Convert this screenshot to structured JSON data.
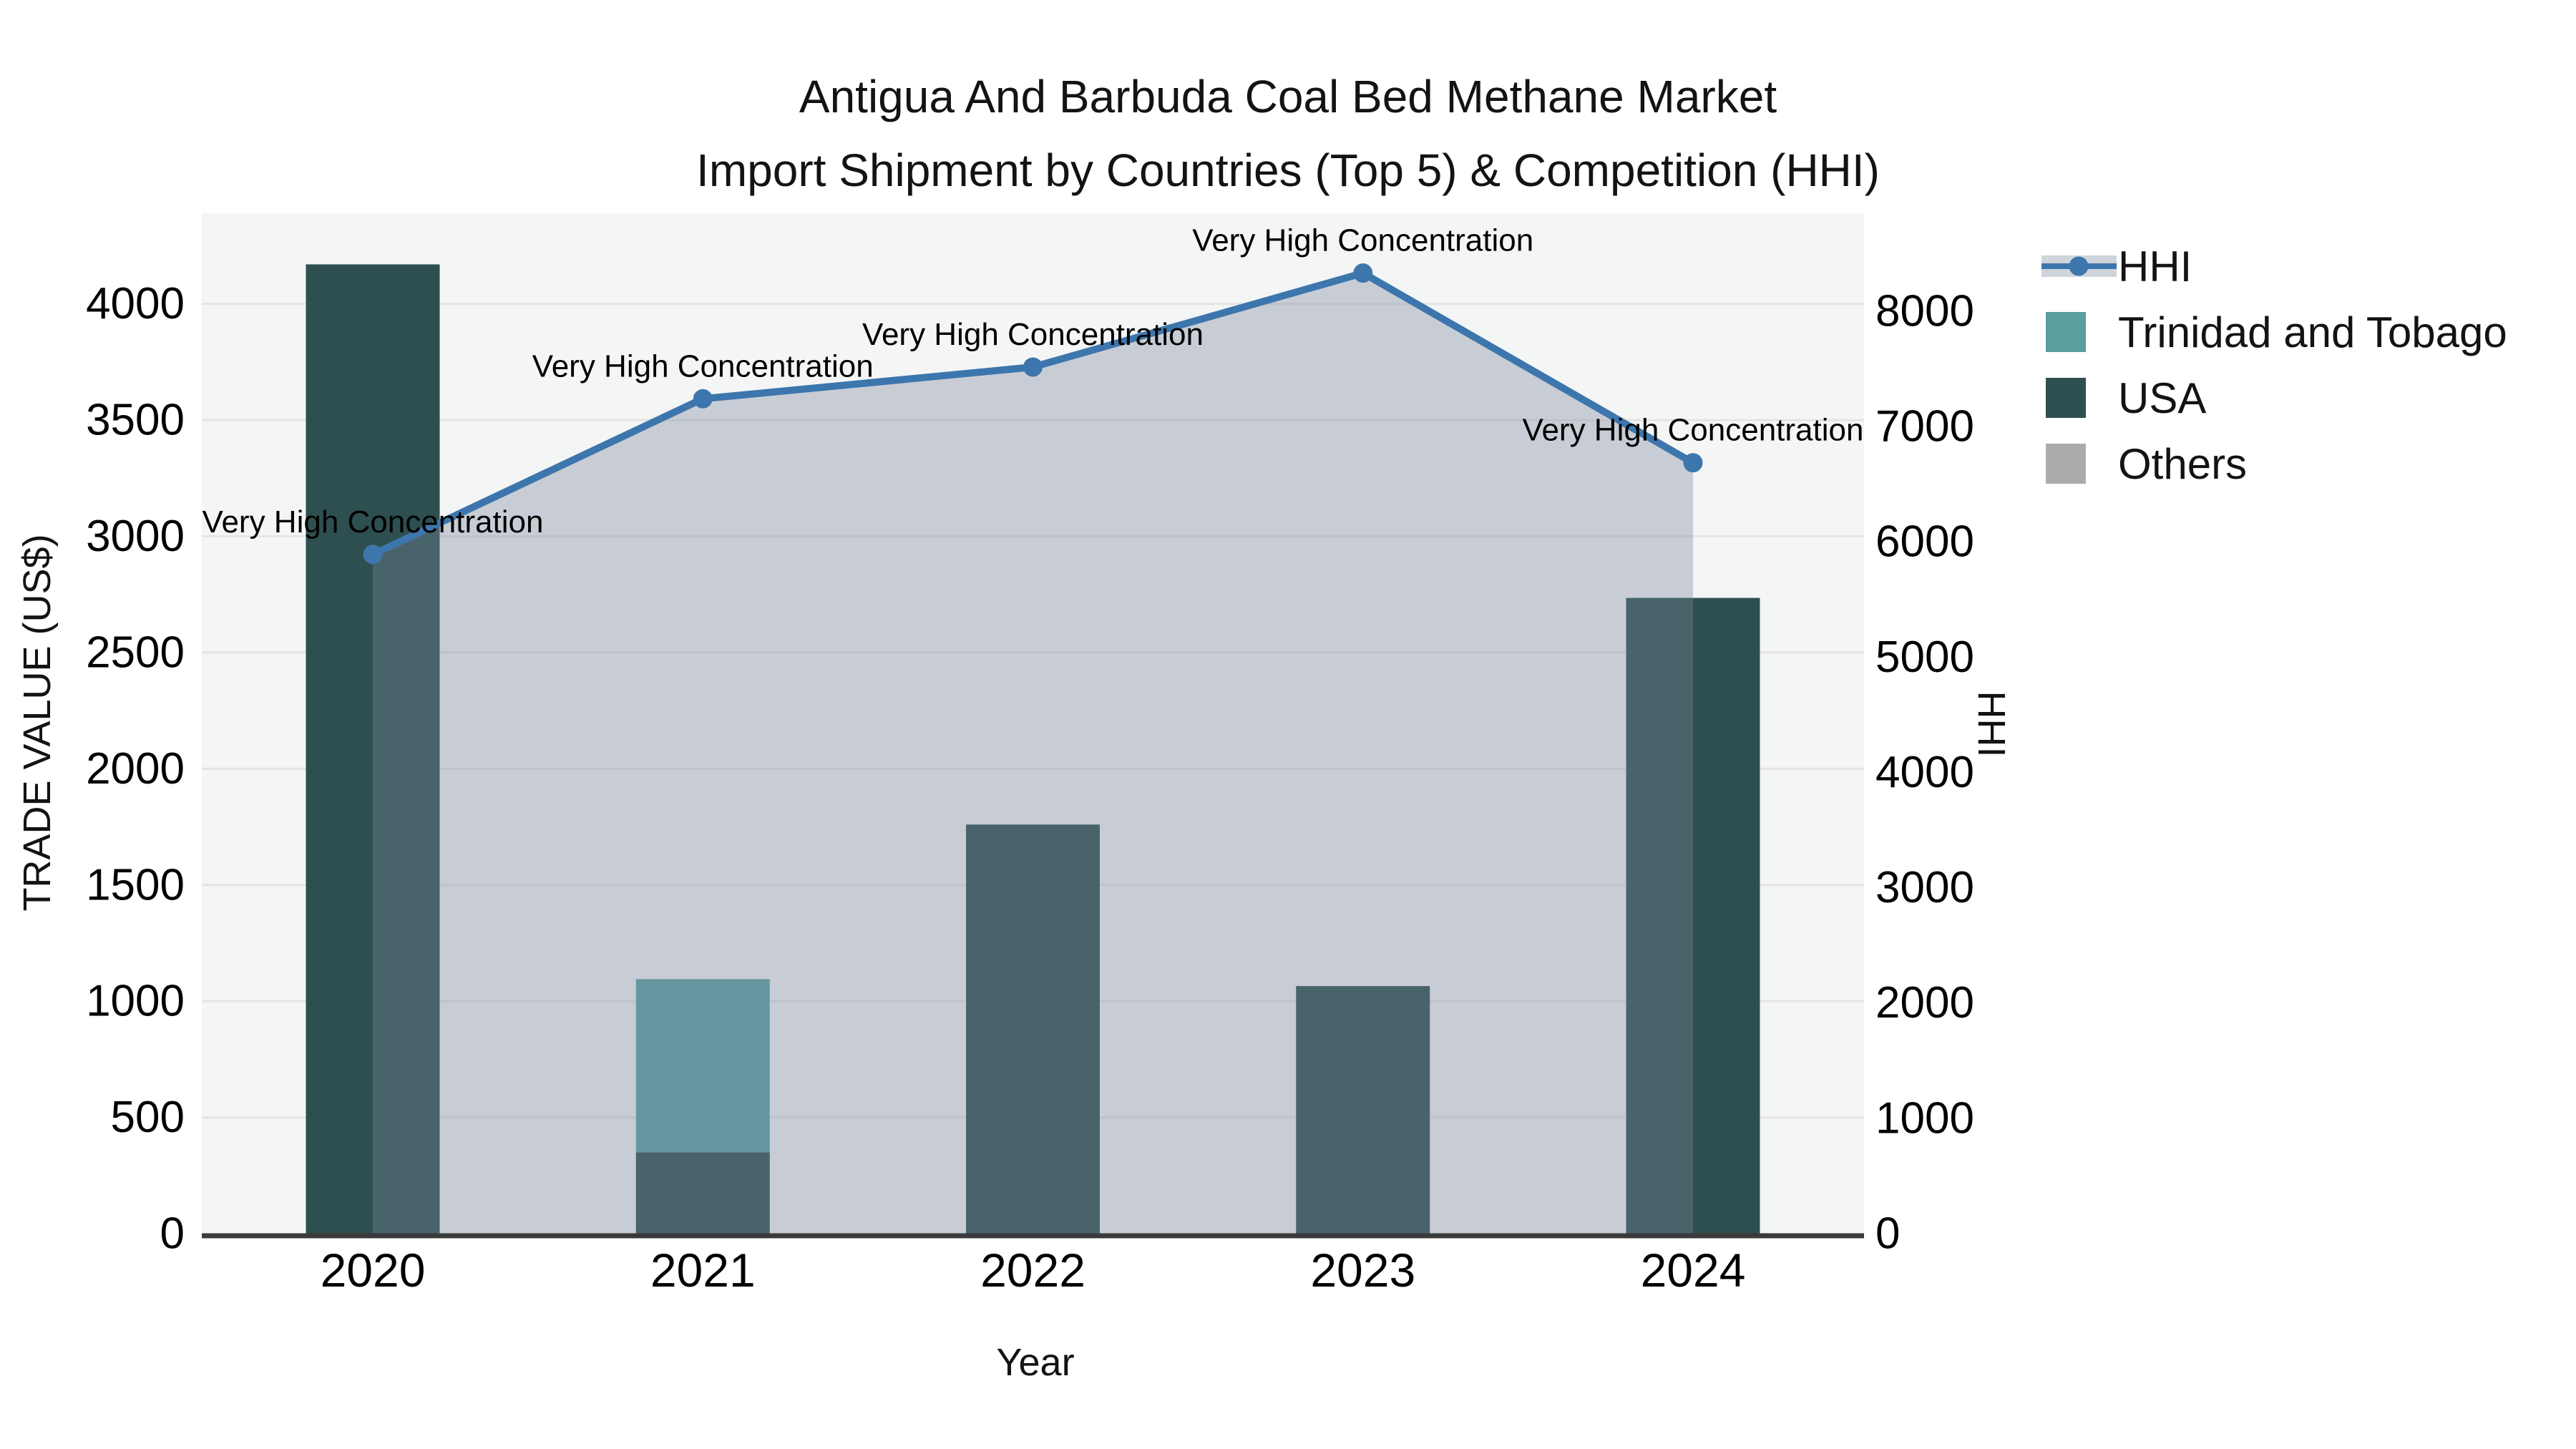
{
  "title": {
    "line1": "Antigua And Barbuda Coal Bed Methane Market",
    "line2": "Import Shipment by Countries (Top 5) & Competition (HHI)"
  },
  "chart_data": {
    "type": "combo-stacked-bar-line",
    "categories": [
      "2020",
      "2021",
      "2022",
      "2023",
      "2024"
    ],
    "bar_series": [
      {
        "name": "USA",
        "color": "#2E4F4F",
        "values": [
          4170,
          350,
          1760,
          1065,
          2735
        ]
      },
      {
        "name": "Trinidad and Tobago",
        "color": "#5C9EA0",
        "values": [
          0,
          745,
          0,
          0,
          0
        ]
      },
      {
        "name": "Others",
        "color": "#ABABAB",
        "values": [
          0,
          0,
          0,
          0,
          0
        ]
      }
    ],
    "line_series": {
      "name": "HHI",
      "color": "#3D76AD",
      "area_fill": "rgba(121,136,158,0.36)",
      "values": [
        5890,
        7240,
        7515,
        8330,
        6685
      ]
    },
    "point_annotations": [
      "Very High Concentration",
      "Very High Concentration",
      "Very High Concentration",
      "Very High Concentration",
      "Very High Concentration"
    ],
    "xlabel": "Year",
    "ylabel_left": "TRADE VALUE (US$)",
    "ylabel_right": "HHI",
    "left_axis": {
      "ticks": [
        0,
        500,
        1000,
        1500,
        2000,
        2500,
        3000,
        3500,
        4000
      ],
      "range": [
        0,
        4390
      ]
    },
    "right_axis": {
      "ticks": [
        0,
        1000,
        2000,
        3000,
        4000,
        5000,
        6000,
        7000,
        8000
      ],
      "range": [
        0,
        8849
      ]
    },
    "grid": true,
    "legend_position": "upper-right-outside",
    "plot_bg": "#F4F5F5",
    "grid_color": "#E4E4E4",
    "axis_line_color": "#3A3A3A"
  },
  "legend": {
    "items": [
      {
        "label": "HHI",
        "type": "line-marker",
        "color": "#3D76AD",
        "band": "rgba(121,136,158,0.36)"
      },
      {
        "label": "Trinidad and Tobago",
        "type": "square",
        "color": "#5C9EA0"
      },
      {
        "label": "USA",
        "type": "square",
        "color": "#2E4F4F"
      },
      {
        "label": "Others",
        "type": "square",
        "color": "#ABABAB"
      }
    ]
  }
}
